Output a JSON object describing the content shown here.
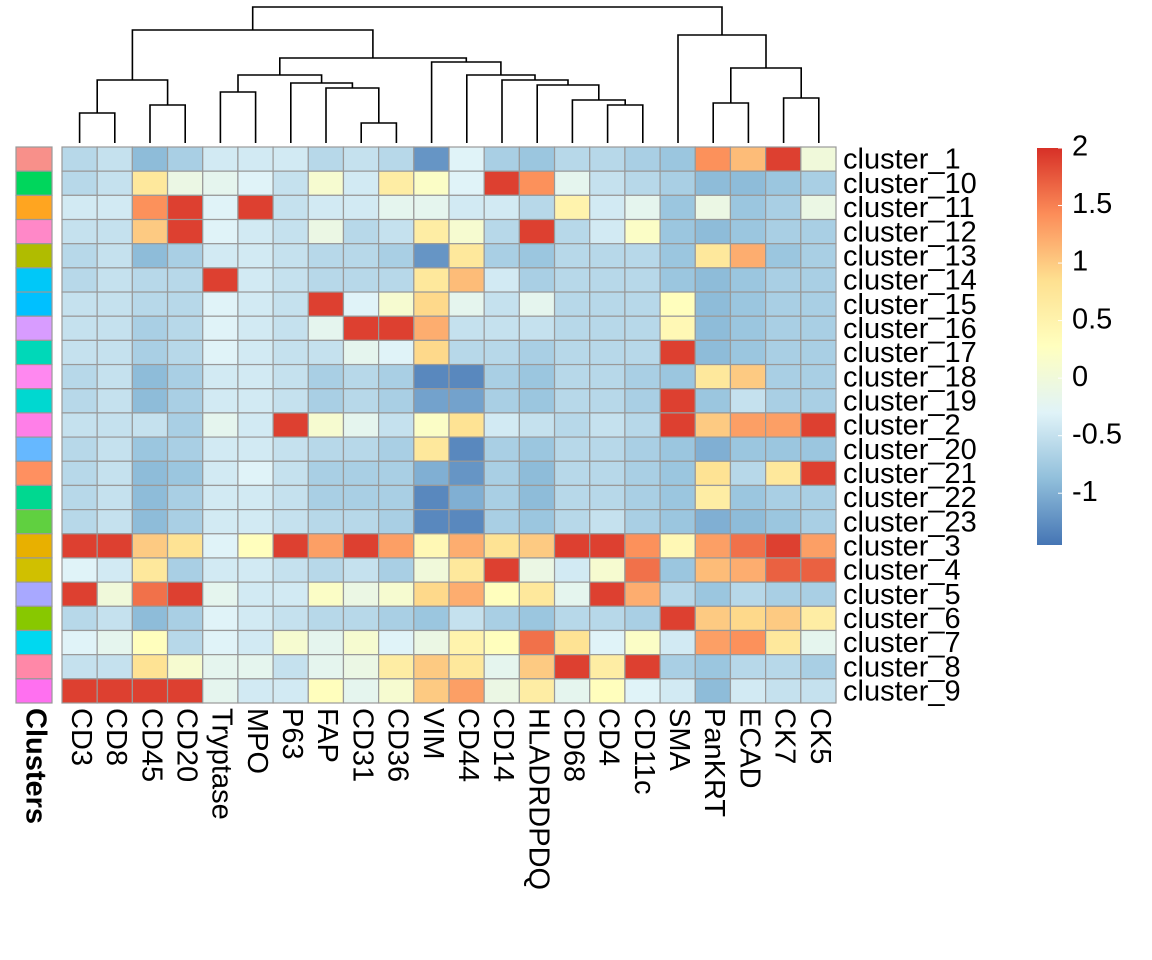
{
  "chart_data": {
    "type": "heatmap",
    "columns": [
      "CD3",
      "CD8",
      "CD45",
      "CD20",
      "Tryptase",
      "MPO",
      "P63",
      "FAP",
      "CD31",
      "CD36",
      "VIM",
      "CD44",
      "CD14",
      "HLADRDPDQ",
      "CD68",
      "CD4",
      "CD11c",
      "SMA",
      "PanKRT",
      "ECAD",
      "CK7",
      "CK5"
    ],
    "rows": [
      "cluster_1",
      "cluster_10",
      "cluster_11",
      "cluster_12",
      "cluster_13",
      "cluster_14",
      "cluster_15",
      "cluster_16",
      "cluster_17",
      "cluster_18",
      "cluster_19",
      "cluster_2",
      "cluster_20",
      "cluster_21",
      "cluster_22",
      "cluster_23",
      "cluster_3",
      "cluster_4",
      "cluster_5",
      "cluster_6",
      "cluster_7",
      "cluster_8",
      "cluster_9"
    ],
    "values": [
      [
        -0.6,
        -0.5,
        -0.9,
        -0.7,
        -0.4,
        -0.4,
        -0.4,
        -0.6,
        -0.5,
        -0.6,
        -1.2,
        -0.3,
        -0.7,
        -0.8,
        -0.6,
        -0.6,
        -0.7,
        -0.8,
        1.4,
        1.1,
        1.9,
        0.0
      ],
      [
        -0.6,
        -0.5,
        0.7,
        -0.1,
        -0.2,
        -0.3,
        -0.5,
        0.1,
        -0.4,
        0.6,
        0.2,
        -0.3,
        1.9,
        1.4,
        -0.2,
        -0.5,
        -0.6,
        -0.7,
        -0.9,
        -0.9,
        -0.8,
        -0.7
      ],
      [
        -0.4,
        -0.4,
        1.4,
        1.9,
        -0.3,
        1.9,
        -0.5,
        -0.4,
        -0.4,
        -0.2,
        -0.2,
        -0.4,
        -0.4,
        -0.6,
        0.5,
        -0.4,
        -0.2,
        -0.8,
        -0.1,
        -0.8,
        -0.7,
        -0.1
      ],
      [
        -0.5,
        -0.5,
        1.0,
        1.9,
        -0.3,
        -0.4,
        -0.5,
        -0.1,
        -0.6,
        -0.5,
        0.6,
        0.1,
        -0.6,
        1.9,
        -0.6,
        -0.4,
        0.2,
        -0.8,
        -0.9,
        -0.8,
        -0.7,
        -0.7
      ],
      [
        -0.6,
        -0.5,
        -0.9,
        -0.7,
        -0.4,
        -0.4,
        -0.5,
        -0.6,
        -0.6,
        -0.7,
        -1.2,
        0.7,
        -0.7,
        -0.8,
        -0.6,
        -0.6,
        -0.6,
        -0.8,
        0.7,
        1.2,
        -0.8,
        -0.7
      ],
      [
        -0.6,
        -0.5,
        -0.6,
        -0.6,
        1.9,
        -0.4,
        -0.5,
        -0.6,
        -0.6,
        -0.6,
        0.7,
        1.1,
        -0.4,
        -0.7,
        -0.6,
        -0.6,
        -0.6,
        -0.8,
        -0.9,
        -0.8,
        -0.7,
        -0.7
      ],
      [
        -0.5,
        -0.5,
        -0.6,
        -0.6,
        -0.3,
        -0.4,
        -0.5,
        1.9,
        -0.3,
        0.1,
        0.9,
        -0.2,
        -0.5,
        -0.2,
        -0.6,
        -0.6,
        -0.6,
        0.3,
        -0.9,
        -0.8,
        -0.7,
        -0.7
      ],
      [
        -0.5,
        -0.5,
        -0.7,
        -0.6,
        -0.3,
        -0.4,
        -0.5,
        -0.2,
        1.9,
        1.9,
        1.2,
        -0.5,
        -0.5,
        -0.5,
        -0.6,
        -0.6,
        -0.6,
        0.4,
        -0.9,
        -0.8,
        -0.7,
        -0.7
      ],
      [
        -0.5,
        -0.5,
        -0.7,
        -0.6,
        -0.3,
        -0.4,
        -0.5,
        -0.5,
        -0.2,
        -0.3,
        0.9,
        -0.6,
        -0.6,
        -0.7,
        -0.6,
        -0.6,
        -0.6,
        1.9,
        -0.9,
        -0.8,
        -0.7,
        -0.7
      ],
      [
        -0.6,
        -0.5,
        -0.9,
        -0.7,
        -0.4,
        -0.4,
        -0.5,
        -0.7,
        -0.6,
        -0.7,
        -1.3,
        -1.3,
        -0.7,
        -0.8,
        -0.6,
        -0.6,
        -0.7,
        -0.8,
        0.7,
        1.0,
        -0.7,
        -0.7
      ],
      [
        -0.6,
        -0.5,
        -0.9,
        -0.7,
        -0.4,
        -0.4,
        -0.5,
        -0.7,
        -0.6,
        -0.7,
        -1.1,
        -1.1,
        -0.7,
        -0.8,
        -0.6,
        -0.6,
        -0.7,
        1.9,
        -0.8,
        -0.5,
        -0.7,
        -0.7
      ],
      [
        -0.5,
        -0.5,
        -0.5,
        -0.7,
        -0.2,
        -0.4,
        1.9,
        0.1,
        -0.2,
        -0.5,
        0.2,
        0.8,
        -0.4,
        -0.5,
        -0.6,
        -0.5,
        -0.6,
        1.9,
        1.0,
        1.3,
        1.3,
        1.9
      ],
      [
        -0.6,
        -0.5,
        -0.8,
        -0.7,
        -0.4,
        -0.4,
        -0.5,
        -0.6,
        -0.6,
        -0.7,
        0.7,
        -1.3,
        -0.7,
        -0.8,
        -0.6,
        -0.6,
        -0.7,
        -0.8,
        -1.0,
        -0.8,
        -0.8,
        -0.8
      ],
      [
        -0.6,
        -0.5,
        -0.9,
        -0.8,
        -0.4,
        -0.3,
        -0.5,
        -0.7,
        -0.7,
        -0.7,
        -1.0,
        -1.2,
        -0.7,
        -0.9,
        -0.6,
        -0.6,
        -0.7,
        -0.8,
        0.8,
        -0.6,
        0.7,
        1.9
      ],
      [
        -0.6,
        -0.5,
        -0.9,
        -0.7,
        -0.4,
        -0.4,
        -0.5,
        -0.7,
        -0.7,
        -0.7,
        -1.3,
        -1.0,
        -0.7,
        -0.9,
        -0.6,
        -0.6,
        -0.7,
        -0.8,
        0.6,
        -0.8,
        -0.7,
        -0.7
      ],
      [
        -0.6,
        -0.5,
        -0.9,
        -0.7,
        -0.4,
        -0.4,
        -0.5,
        -0.6,
        -0.6,
        -0.7,
        -1.3,
        -1.3,
        -0.7,
        -0.8,
        -0.6,
        -0.5,
        -0.7,
        -0.8,
        -1.0,
        -0.9,
        -0.8,
        -0.7
      ],
      [
        1.9,
        1.9,
        1.0,
        0.8,
        -0.3,
        0.3,
        1.9,
        1.3,
        1.9,
        1.3,
        0.4,
        1.2,
        0.8,
        1.0,
        1.9,
        1.9,
        1.4,
        0.4,
        1.3,
        1.6,
        1.9,
        1.3
      ],
      [
        -0.3,
        -0.4,
        0.7,
        -0.7,
        -0.4,
        -0.4,
        -0.5,
        -0.6,
        -0.5,
        -0.7,
        0.0,
        0.7,
        1.9,
        -0.1,
        -0.4,
        0.1,
        1.6,
        -0.8,
        1.1,
        1.2,
        1.7,
        1.7
      ],
      [
        1.9,
        0.0,
        1.6,
        1.9,
        -0.2,
        -0.4,
        -0.4,
        0.2,
        -0.1,
        0.1,
        0.9,
        1.2,
        0.3,
        0.7,
        -0.2,
        1.9,
        1.2,
        -0.6,
        -0.8,
        -0.6,
        -0.7,
        -0.7
      ],
      [
        -0.6,
        -0.5,
        -0.9,
        -0.7,
        -0.3,
        -0.4,
        -0.5,
        -0.6,
        -0.6,
        -0.7,
        -0.8,
        -0.5,
        -0.7,
        -0.8,
        -0.6,
        -0.6,
        -0.7,
        1.9,
        1.0,
        0.9,
        1.0,
        0.6
      ],
      [
        -0.3,
        -0.2,
        0.3,
        -0.6,
        -0.3,
        -0.4,
        0.1,
        -0.2,
        0.1,
        -0.3,
        -0.1,
        0.5,
        0.3,
        1.6,
        0.8,
        -0.3,
        0.2,
        -0.4,
        1.3,
        1.4,
        0.7,
        -0.2
      ],
      [
        -0.5,
        -0.5,
        0.8,
        0.1,
        -0.2,
        -0.2,
        -0.5,
        -0.2,
        -0.1,
        0.6,
        1.0,
        0.7,
        -0.2,
        1.0,
        1.9,
        0.6,
        1.9,
        -0.7,
        -0.8,
        -0.6,
        -0.6,
        -0.7
      ],
      [
        1.9,
        1.9,
        1.9,
        1.9,
        -0.2,
        -0.4,
        -0.4,
        0.3,
        -0.2,
        0.1,
        1.0,
        1.3,
        -0.1,
        0.6,
        -0.2,
        0.3,
        -0.3,
        -0.4,
        -0.9,
        -0.4,
        -0.5,
        -0.5
      ]
    ],
    "colorscale": [
      "#4575B4",
      "#91BFDB",
      "#E0F3F8",
      "#FFFFBF",
      "#FEE090",
      "#FC8D59",
      "#D73027"
    ],
    "zlim": [
      -1.45,
      2
    ],
    "legend_ticks": [
      2,
      1.5,
      1,
      0.5,
      0,
      -0.5,
      -1
    ],
    "annotation": {
      "title": "Clusters",
      "colors": [
        "#F8908A",
        "#00D65C",
        "#FFA520",
        "#FF88C8",
        "#B0BC00",
        "#00C8F8",
        "#00C0FF",
        "#D89CFF",
        "#00D8B8",
        "#FF88F0",
        "#00D8D0",
        "#FF7FE8",
        "#66B8FF",
        "#FF9060",
        "#00D890",
        "#60D040",
        "#E8B000",
        "#D0C000",
        "#A8A8FF",
        "#88C800",
        "#00D8F0",
        "#FF88A8",
        "#FF70F0"
      ]
    }
  }
}
